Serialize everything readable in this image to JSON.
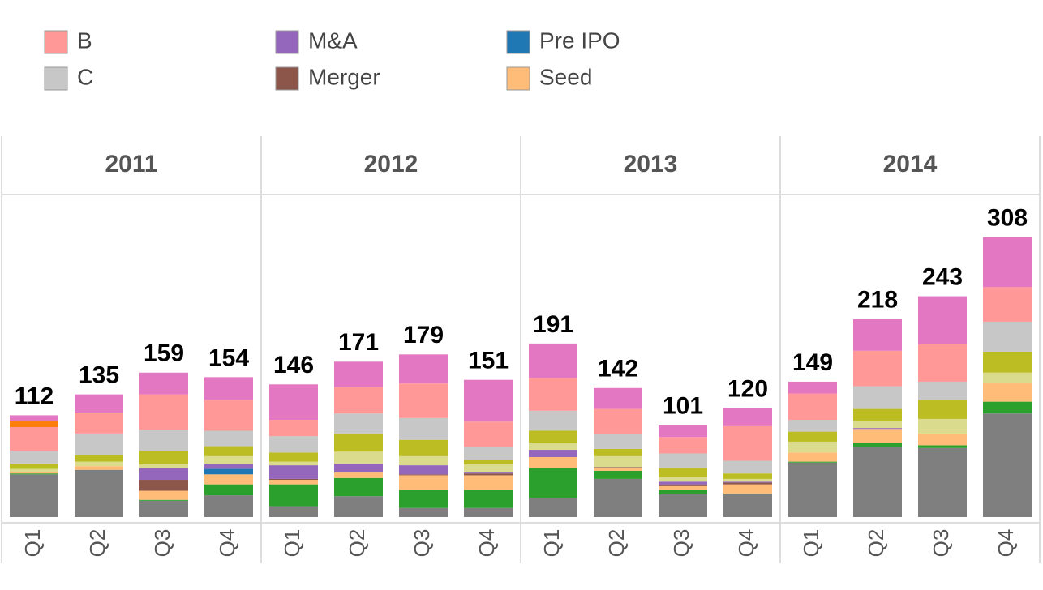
{
  "chart_data": {
    "type": "stacked_bar",
    "years": [
      "2011",
      "2012",
      "2013",
      "2014"
    ],
    "categories": [
      "Q1",
      "Q2",
      "Q3",
      "Q4",
      "Q1",
      "Q2",
      "Q3",
      "Q4",
      "Q1",
      "Q2",
      "Q3",
      "Q4",
      "Q1",
      "Q2",
      "Q3",
      "Q4"
    ],
    "totals": [
      112,
      135,
      159,
      154,
      146,
      171,
      179,
      151,
      191,
      142,
      101,
      120,
      149,
      218,
      243,
      308
    ],
    "ylim": [
      0,
      355
    ],
    "series": [
      {
        "color": "#7f7f7f",
        "values": [
          47,
          52,
          18,
          24,
          12,
          23,
          10,
          10,
          21,
          42,
          25,
          25,
          60,
          77,
          76,
          114
        ]
      },
      {
        "color": "#2ca02c",
        "values": [
          1,
          0,
          1,
          12,
          24,
          20,
          20,
          20,
          33,
          9,
          5,
          1,
          1,
          5,
          3,
          13
        ]
      },
      {
        "name": "Seed",
        "color": "#ffbb78",
        "values": [
          2,
          4,
          10,
          11,
          5,
          6,
          16,
          16,
          12,
          3,
          4,
          10,
          10,
          15,
          13,
          21
        ]
      },
      {
        "name": "Pre IPO",
        "color": "#1f77b4",
        "values": [
          0,
          0,
          0,
          6,
          0,
          0,
          0,
          0,
          0,
          0,
          0,
          0,
          0,
          0,
          0,
          0
        ]
      },
      {
        "name": "Merger",
        "color": "#8c564b",
        "values": [
          0,
          0,
          12,
          0,
          1,
          0,
          1,
          2,
          0,
          1,
          2,
          2,
          0,
          0,
          0,
          0
        ]
      },
      {
        "name": "M&A",
        "color": "#9467bd",
        "values": [
          0,
          0,
          13,
          5,
          15,
          10,
          10,
          1,
          8,
          0,
          3,
          1,
          0,
          1,
          0,
          0
        ]
      },
      {
        "color": "#dbdb8d",
        "values": [
          3,
          5,
          4,
          9,
          4,
          13,
          10,
          9,
          8,
          12,
          5,
          3,
          12,
          8,
          16,
          11
        ]
      },
      {
        "color": "#bcbd22",
        "values": [
          6,
          7,
          15,
          11,
          10,
          20,
          18,
          5,
          13,
          8,
          10,
          6,
          11,
          13,
          21,
          23
        ]
      },
      {
        "name": "C",
        "color": "#c7c7c7",
        "values": [
          14,
          24,
          23,
          17,
          18,
          22,
          24,
          14,
          22,
          16,
          16,
          14,
          13,
          25,
          20,
          33
        ]
      },
      {
        "name": "B",
        "color": "#ff9896",
        "values": [
          26,
          22,
          39,
          34,
          18,
          29,
          38,
          28,
          36,
          28,
          18,
          38,
          29,
          39,
          41,
          38
        ]
      },
      {
        "color": "#ff7f0e",
        "values": [
          7,
          1,
          0,
          0,
          0,
          0,
          0,
          0,
          0,
          0,
          0,
          0,
          0,
          0,
          0,
          0
        ]
      },
      {
        "color": "#e377c2",
        "values": [
          6,
          20,
          24,
          25,
          39,
          28,
          32,
          46,
          38,
          23,
          13,
          20,
          13,
          35,
          53,
          55
        ]
      }
    ]
  }
}
